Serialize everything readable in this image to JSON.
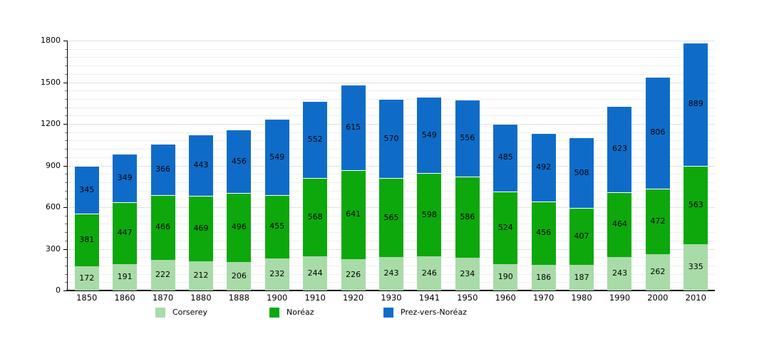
{
  "chart_data": {
    "type": "bar",
    "stacked": true,
    "title": "",
    "xlabel": "",
    "ylabel": "",
    "categories": [
      "1850",
      "1860",
      "1870",
      "1880",
      "1888",
      "1900",
      "1910",
      "1920",
      "1930",
      "1941",
      "1950",
      "1960",
      "1970",
      "1980",
      "1990",
      "2000",
      "2010"
    ],
    "series": [
      {
        "name": "Corserey",
        "color": "#A8DBA8",
        "values": [
          172,
          191,
          222,
          212,
          206,
          232,
          244,
          226,
          243,
          246,
          234,
          190,
          186,
          187,
          243,
          262,
          335
        ]
      },
      {
        "name": "Noréaz",
        "color": "#0CA80C",
        "values": [
          381,
          447,
          466,
          469,
          496,
          455,
          568,
          641,
          565,
          598,
          586,
          524,
          456,
          407,
          464,
          472,
          563
        ]
      },
      {
        "name": "Prez-vers-Noréaz",
        "color": "#0E6CC8",
        "values": [
          345,
          349,
          366,
          443,
          456,
          549,
          552,
          615,
          570,
          549,
          556,
          485,
          492,
          508,
          623,
          806,
          889
        ]
      }
    ],
    "ylim": [
      0,
      1800
    ],
    "yticks": [
      0,
      300,
      600,
      900,
      1200,
      1500,
      1800
    ],
    "minor_tick_step": 60,
    "grid": true,
    "legend_position": "bottom",
    "bar_value_labels": true
  }
}
